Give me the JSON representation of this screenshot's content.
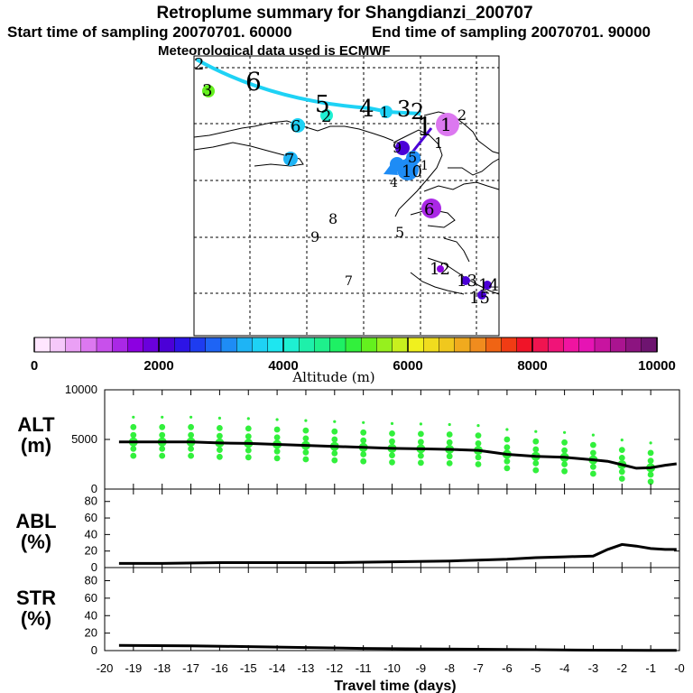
{
  "title": "Retroplume summary for Shangdianzi_200707",
  "subtitle_start": "Start time of sampling 20070701. 60000",
  "subtitle_end": "End time of sampling 20070701. 90000",
  "subtitle_met": "Meteorological data used is ECMWF",
  "map": {
    "trajectory_labels": [
      "1",
      "2",
      "3",
      "4",
      "5",
      "6",
      "7"
    ],
    "cluster_labels": [
      "1",
      "2",
      "3",
      "4",
      "5",
      "6",
      "7",
      "8",
      "9",
      "10",
      "11",
      "12",
      "13",
      "14",
      "15"
    ]
  },
  "colorbar": {
    "ticks": [
      "0",
      "2000",
      "4000",
      "6000",
      "8000",
      "10000"
    ],
    "label": "Altitude (m)",
    "colors": [
      "#ffe6ff",
      "#f5c8fa",
      "#eaa0f5",
      "#dc78f0",
      "#c850eb",
      "#aa28e6",
      "#8c00e1",
      "#6a00dc",
      "#4b00d7",
      "#2d14e6",
      "#1e3cf0",
      "#1e64f5",
      "#1e8cf5",
      "#1eb4f5",
      "#1ed2f5",
      "#1ee6f0",
      "#1ef0d2",
      "#1ef0aa",
      "#1ef08c",
      "#1ef064",
      "#32f03c",
      "#64f01e",
      "#96f01e",
      "#c8f01e",
      "#f0f01e",
      "#f0dc1e",
      "#f0c81e",
      "#f0aa1e",
      "#f08c1e",
      "#f06414",
      "#f03c14",
      "#f01428",
      "#f01450",
      "#f01478",
      "#f014a0",
      "#e614b4",
      "#c814a0",
      "#aa1490",
      "#8c1480",
      "#6e1470"
    ]
  },
  "chart_data": [
    {
      "type": "line",
      "name": "ALT",
      "ylabel": "ALT (m)",
      "ylabel_line1": "ALT",
      "ylabel_line2": "(m)",
      "ylim": [
        0,
        10000
      ],
      "yticks": [
        "10000",
        "5000",
        "0"
      ],
      "x": [
        -19.5,
        -19,
        -18,
        -17,
        -16,
        -15,
        -14,
        -13,
        -12,
        -11,
        -10,
        -9,
        -8,
        -7,
        -6,
        -5,
        -4,
        -3,
        -2.5,
        -2,
        -1.5,
        -1,
        -0.5,
        -0.1
      ],
      "values": [
        4750,
        4750,
        4750,
        4750,
        4650,
        4600,
        4500,
        4400,
        4300,
        4200,
        4100,
        4050,
        4000,
        3900,
        3500,
        3300,
        3200,
        2950,
        2800,
        2450,
        2100,
        2150,
        2400,
        2550
      ]
    },
    {
      "type": "line",
      "name": "ABL",
      "ylabel": "ABL (%)",
      "ylabel_line1": "ABL",
      "ylabel_line2": "(%)",
      "ylim": [
        0,
        95
      ],
      "yticks": [
        "80",
        "60",
        "40",
        "20",
        "0"
      ],
      "x": [
        -19.5,
        -18,
        -16,
        -14,
        -12,
        -10,
        -8,
        -7,
        -6,
        -5,
        -4,
        -3,
        -2.5,
        -2,
        -1.5,
        -1,
        -0.5,
        -0.1
      ],
      "values": [
        5,
        5,
        6,
        6,
        6,
        7,
        8,
        9,
        10,
        12,
        13,
        14,
        22,
        28,
        26,
        23,
        22,
        22
      ]
    },
    {
      "type": "line",
      "name": "STR",
      "ylabel": "STR (%)",
      "ylabel_line1": "STR",
      "ylabel_line2": "(%)",
      "ylim": [
        0,
        95
      ],
      "yticks": [
        "80",
        "60",
        "40",
        "20",
        "0"
      ],
      "x": [
        -19.5,
        -17,
        -15,
        -13,
        -11,
        -9,
        -7,
        -5,
        -3,
        -1,
        -0.1
      ],
      "values": [
        6,
        5.5,
        4.5,
        3.5,
        2.5,
        2,
        1.5,
        1,
        0.5,
        0.2,
        0.2
      ]
    }
  ],
  "xaxis": {
    "label": "Travel time (days)",
    "xlim": [
      -20,
      0
    ],
    "ticks": [
      "-20",
      "-19",
      "-18",
      "-17",
      "-16",
      "-15",
      "-14",
      "-13",
      "-12",
      "-11",
      "-10",
      "-9",
      "-8",
      "-7",
      "-6",
      "-5",
      "-4",
      "-3",
      "-2",
      "-1",
      "-0"
    ]
  }
}
